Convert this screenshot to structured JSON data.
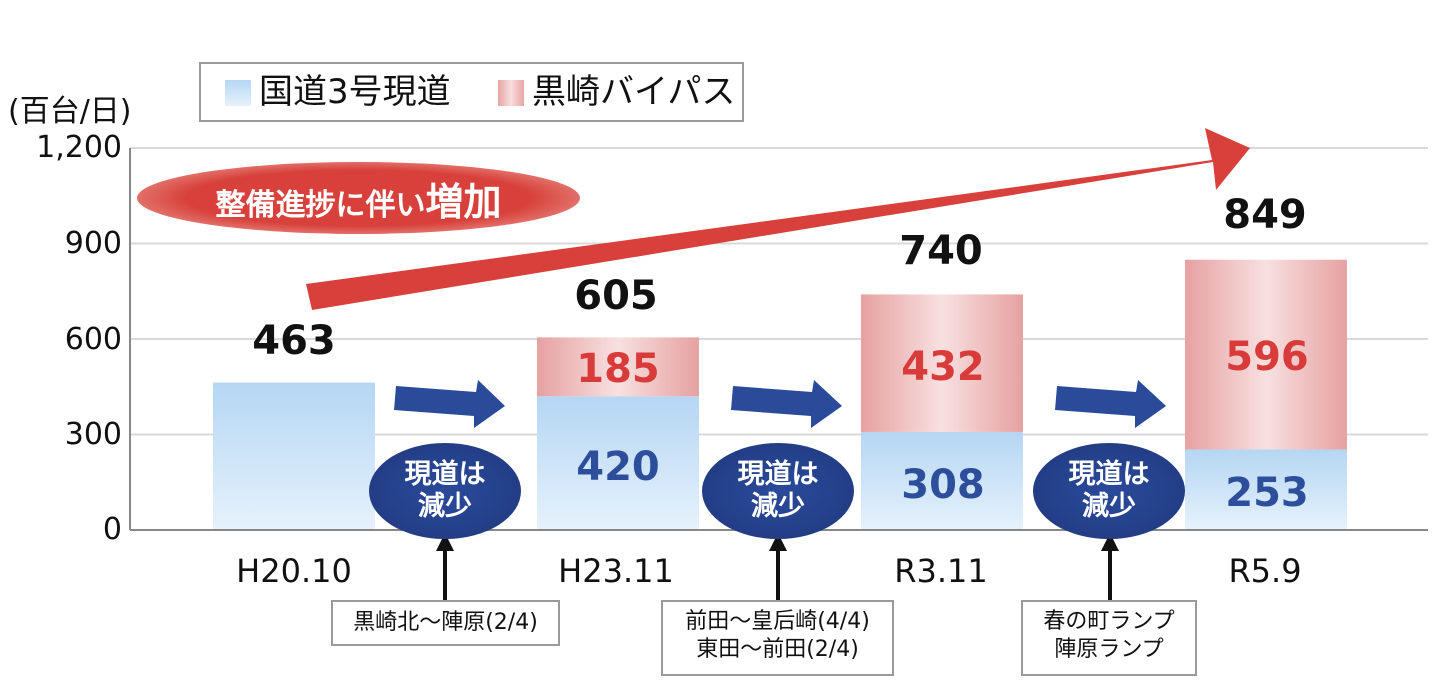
{
  "chart_data": {
    "type": "bar",
    "stacked": true,
    "categories": [
      "H20.10",
      "H23.11",
      "R3.11",
      "R5.9"
    ],
    "series": [
      {
        "name": "国道3号現道",
        "values": [
          463,
          420,
          308,
          253
        ],
        "color": "#b5d6f3"
      },
      {
        "name": "黒崎バイパス",
        "values": [
          0,
          185,
          432,
          596
        ],
        "color": "#e8a3a3"
      }
    ],
    "totals": [
      "463",
      "605",
      "740",
      "849"
    ],
    "segment_labels": {
      "blue": [
        "",
        "420",
        "308",
        "253"
      ],
      "red": [
        "",
        "185",
        "432",
        "596"
      ]
    },
    "ylabel": "(百台/日)",
    "ylim": [
      0,
      1200
    ],
    "yticks": [
      "0",
      "300",
      "600",
      "900",
      "1,200"
    ],
    "ytick_values": [
      0,
      300,
      600,
      900,
      1200
    ],
    "grid": true,
    "legend_position": "top"
  },
  "legend": {
    "item1": "国道3号現道",
    "item2": "黒崎バイパス"
  },
  "callout": {
    "text": "整備進捗に伴い",
    "emphasis": "増加"
  },
  "decrease": {
    "line1": "現道は",
    "line2": "減少"
  },
  "notes": {
    "note1": "黒崎北～陣原(2/4)",
    "note2_line1": "前田～皇后崎(4/4)",
    "note2_line2": "東田～前田(2/4)",
    "note3_line1": "春の町ランプ",
    "note3_line2": "陣原ランプ"
  },
  "colors": {
    "blue_bar": "#b5d6f3",
    "red_bar": "#e8a3a3",
    "trend_arrow": "#d8413b",
    "step_arrow": "#2a4a9a",
    "red_label": "#d93a3a",
    "blue_label": "#2d4f9b"
  }
}
